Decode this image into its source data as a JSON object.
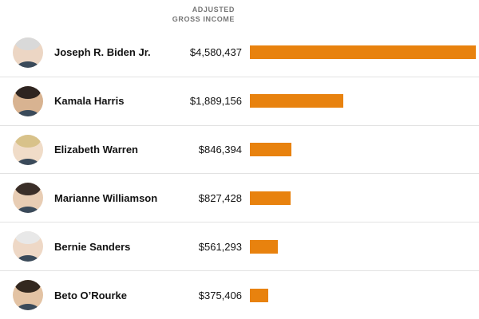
{
  "header": {
    "line1": "ADJUSTED",
    "line2": "GROSS INCOME"
  },
  "chart_data": {
    "type": "bar",
    "orientation": "horizontal",
    "title": "Adjusted Gross Income",
    "categories": [
      "Joseph R. Biden Jr.",
      "Kamala Harris",
      "Elizabeth Warren",
      "Marianne Williamson",
      "Bernie Sanders",
      "Beto O’Rourke"
    ],
    "values": [
      4580437,
      1889156,
      846394,
      827428,
      561293,
      375406
    ],
    "value_labels": [
      "$4,580,437",
      "$1,889,156",
      "$846,394",
      "$827,428",
      "$561,293",
      "$375,406"
    ],
    "xlabel": "Adjusted gross income ($)",
    "ylabel": "",
    "xlim": [
      0,
      4580437
    ],
    "max_value": 4580437,
    "bar_color": "#e8820e",
    "grid": false,
    "legend": false
  }
}
